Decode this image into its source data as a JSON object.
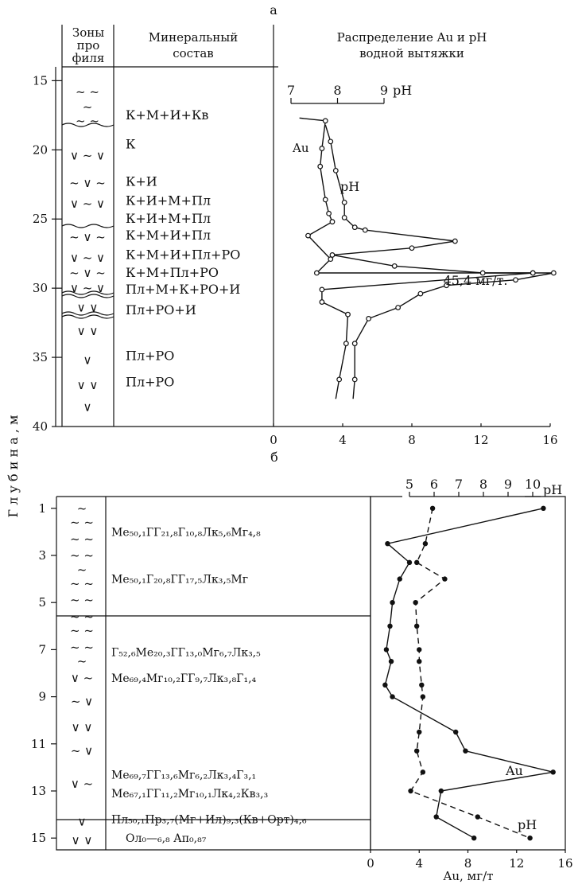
{
  "chart_data": [
    {
      "type": "line",
      "panel_label": "а",
      "headers": {
        "zones": [
          "Зоны",
          "про",
          "филя"
        ],
        "mineral": [
          "Минеральный",
          "состав"
        ],
        "distribution": [
          "Распределение Au и pH",
          "водной вытяжки"
        ]
      },
      "ylabel": "Г л у б и н а ,  м",
      "depth_ticks": [
        "15",
        "20",
        "25",
        "30",
        "35",
        "40"
      ],
      "depth_range": [
        14,
        40
      ],
      "x_range": [
        0,
        16
      ],
      "x_ticks": [
        "0",
        "4",
        "8",
        "12",
        "16"
      ],
      "ph_axis": {
        "ticks": [
          "7",
          "8",
          "9"
        ],
        "label": "pH",
        "range": [
          7,
          9
        ]
      },
      "mineral_rows": [
        {
          "depth": 17.5,
          "text": "К+М+И+Кв"
        },
        {
          "depth": 19.6,
          "text": "К"
        },
        {
          "depth": 22.3,
          "text": "К+И"
        },
        {
          "depth": 23.7,
          "text": "К+И+М+Пл"
        },
        {
          "depth": 25.0,
          "text": "К+И+М+Пл"
        },
        {
          "depth": 26.2,
          "text": "К+М+И+Пл"
        },
        {
          "depth": 27.6,
          "text": "К+М+И+Пл+РО"
        },
        {
          "depth": 28.9,
          "text": "К+М+Пл+РО"
        },
        {
          "depth": 30.1,
          "text": "Пл+М+К+РО+И"
        },
        {
          "depth": 31.6,
          "text": "Пл+РО+И"
        },
        {
          "depth": 34.9,
          "text": "Пл+РО"
        },
        {
          "depth": 36.8,
          "text": "Пл+РО"
        }
      ],
      "zone_symbols": [
        {
          "depth": 15.8,
          "text": "~      ~"
        },
        {
          "depth": 16.9,
          "text": "~"
        },
        {
          "depth": 17.9,
          "text": "~      ~"
        },
        {
          "depth": 20.4,
          "text": "∨ ~ ∨"
        },
        {
          "depth": 22.4,
          "text": "~ ∨ ~"
        },
        {
          "depth": 23.9,
          "text": "∨ ~ ∨"
        },
        {
          "depth": 26.3,
          "text": "~ ∨ ~"
        },
        {
          "depth": 27.8,
          "text": "∨  ~  ∨"
        },
        {
          "depth": 28.9,
          "text": "~  ∨  ~"
        },
        {
          "depth": 30.0,
          "text": "∨ ~ ∨"
        },
        {
          "depth": 31.4,
          "text": "∨  ∨"
        },
        {
          "depth": 33.1,
          "text": "∨      ∨"
        },
        {
          "depth": 35.2,
          "text": "∨"
        },
        {
          "depth": 37.0,
          "text": "∨        ∨"
        },
        {
          "depth": 38.6,
          "text": "∨"
        }
      ],
      "series": [
        {
          "name": "Au",
          "points": [
            [
              1.5,
              17.7
            ],
            [
              3.0,
              17.9
            ],
            [
              2.8,
              19.9
            ],
            [
              2.7,
              21.2
            ],
            [
              3.0,
              23.6
            ],
            [
              3.2,
              24.6
            ],
            [
              3.4,
              25.2
            ],
            [
              2.0,
              26.2
            ],
            [
              3.3,
              27.9
            ],
            [
              2.5,
              28.9
            ],
            [
              15.0,
              28.9
            ],
            [
              2.8,
              30.1
            ],
            [
              2.8,
              31.0
            ],
            [
              4.3,
              31.9
            ],
            [
              4.2,
              34.0
            ],
            [
              3.8,
              36.6
            ],
            [
              3.6,
              38.0
            ]
          ]
        },
        {
          "name": "pH",
          "points": [
            [
              3.0,
              18.2
            ],
            [
              3.3,
              19.4
            ],
            [
              3.6,
              21.5
            ],
            [
              4.1,
              23.8
            ],
            [
              4.1,
              24.9
            ],
            [
              4.7,
              25.6
            ],
            [
              5.3,
              25.8
            ],
            [
              10.5,
              26.6
            ],
            [
              8.0,
              27.1
            ],
            [
              3.4,
              27.6
            ],
            [
              7.0,
              28.4
            ],
            [
              12.1,
              28.9
            ],
            [
              15.0,
              28.9
            ],
            [
              16.2,
              28.9
            ],
            [
              14.0,
              29.4
            ],
            [
              10.0,
              29.8
            ],
            [
              8.5,
              30.4
            ],
            [
              7.2,
              31.4
            ],
            [
              5.5,
              32.2
            ],
            [
              4.7,
              34.0
            ],
            [
              4.7,
              36.6
            ],
            [
              4.6,
              38.0
            ]
          ]
        }
      ],
      "labels": {
        "au": "Au",
        "ph": "pH",
        "extreme": "45,4 мг/т."
      }
    },
    {
      "type": "line",
      "panel_label": "б",
      "depth_ticks": [
        "1",
        "3",
        "5",
        "7",
        "9",
        "11",
        "13",
        "15"
      ],
      "depth_range": [
        0.5,
        15.5
      ],
      "x_range": [
        0,
        16
      ],
      "x_ticks": [
        "0",
        "4",
        "8",
        "12",
        "16"
      ],
      "xlabel": "Au, мг/т",
      "ph_axis": {
        "ticks": [
          "5",
          "6",
          "7",
          "8",
          "9",
          "10"
        ],
        "label": "pH",
        "range": [
          5,
          10
        ]
      },
      "mineral_rows": [
        {
          "depth": 2.0,
          "text": "Ме₅₀,₁ГГ₂₁,₈Г₁₀,₈Лк₅,₆Мг₄,₈"
        },
        {
          "depth": 4.0,
          "text": "Ме₅₀,₁Г₂₀,₈ГГ₁₇,₅Лк₃,₅Мг"
        },
        {
          "depth": 7.1,
          "text": "Г₅₂,₆Ме₂₀,₃ГГ₁₃,₀Мг₆,₇Лк₃,₅"
        },
        {
          "depth": 8.2,
          "text": "Ме₆₉,₄Мг₁₀,₂ГГ₉,₇Лк₃,₈Г₁,₄"
        },
        {
          "depth": 12.3,
          "text": "Ме₆₉,₇ГГ₁₃,₆Мг₆,₂Лк₃,₄Г₃,₁"
        },
        {
          "depth": 13.1,
          "text": "Ме₆₇,₁ГГ₁₁,₂Мг₁₀,₁Лк₄,₂Кв₃,₃"
        },
        {
          "depth": 14.2,
          "text": "Пл₅₀,₁Пр₃,₇(Мг+Ил)₉,₃(Кв+Орт)₄,₆"
        },
        {
          "depth": 15.0,
          "text": "Ол₀—₆,₈ Ап₀,₈₇"
        }
      ],
      "zone_symbols": [
        {
          "depth": 1.0,
          "text": "~"
        },
        {
          "depth": 1.6,
          "text": "~    ~"
        },
        {
          "depth": 2.3,
          "text": "~     ~"
        },
        {
          "depth": 3.0,
          "text": "~    ~"
        },
        {
          "depth": 3.6,
          "text": "~"
        },
        {
          "depth": 4.2,
          "text": "~     ~"
        },
        {
          "depth": 4.9,
          "text": "~    ~"
        },
        {
          "depth": 5.6,
          "text": "~     ~"
        },
        {
          "depth": 6.2,
          "text": "~      ~"
        },
        {
          "depth": 6.9,
          "text": "~       ~"
        },
        {
          "depth": 7.5,
          "text": "~"
        },
        {
          "depth": 8.2,
          "text": "∨    ~"
        },
        {
          "depth": 9.2,
          "text": "~    ∨"
        },
        {
          "depth": 10.3,
          "text": "∨    ∨"
        },
        {
          "depth": 11.3,
          "text": "~    ∨"
        },
        {
          "depth": 12.7,
          "text": "∨ ~"
        },
        {
          "depth": 14.3,
          "text": "∨"
        },
        {
          "depth": 15.1,
          "text": "∨     ∨"
        }
      ],
      "series": [
        {
          "name": "Au",
          "points": [
            [
              14.2,
              1.0
            ],
            [
              1.4,
              2.5
            ],
            [
              3.2,
              3.3
            ],
            [
              2.4,
              4.0
            ],
            [
              1.8,
              5.0
            ],
            [
              1.6,
              6.0
            ],
            [
              1.3,
              7.0
            ],
            [
              1.7,
              7.5
            ],
            [
              1.2,
              8.5
            ],
            [
              1.8,
              9.0
            ],
            [
              7.0,
              10.5
            ],
            [
              7.8,
              11.3
            ],
            [
              15.0,
              12.2
            ],
            [
              5.8,
              13.0
            ],
            [
              5.4,
              14.1
            ],
            [
              8.5,
              15.0
            ]
          ]
        },
        {
          "name": "pH",
          "points": [
            [
              5.1,
              1.0
            ],
            [
              4.5,
              2.5
            ],
            [
              3.8,
              3.3
            ],
            [
              6.1,
              4.0
            ],
            [
              3.7,
              5.0
            ],
            [
              3.8,
              6.0
            ],
            [
              4.0,
              7.0
            ],
            [
              4.0,
              7.5
            ],
            [
              4.2,
              8.5
            ],
            [
              4.3,
              9.0
            ],
            [
              4.0,
              10.5
            ],
            [
              3.8,
              11.3
            ],
            [
              4.3,
              12.2
            ],
            [
              3.3,
              13.0
            ],
            [
              8.8,
              14.1
            ],
            [
              13.1,
              15.0
            ]
          ]
        }
      ],
      "labels": {
        "au": "Au",
        "ph": "pH"
      }
    }
  ]
}
